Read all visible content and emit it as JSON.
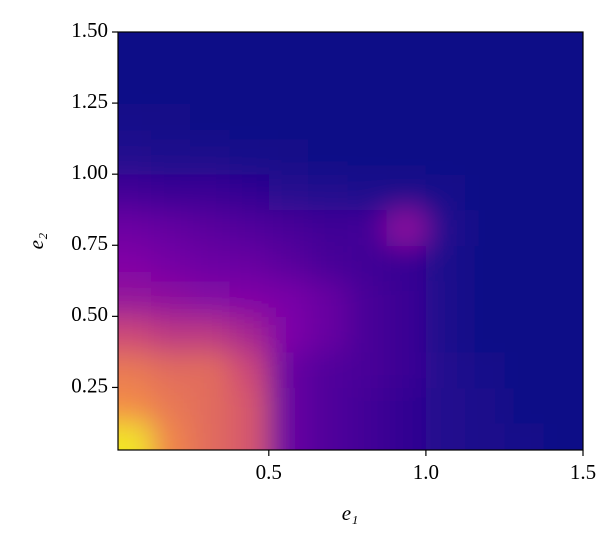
{
  "chart_data": {
    "type": "heatmap",
    "colormap": "plasma",
    "zlim": [
      0,
      1
    ],
    "xlabel": "e₁",
    "ylabel": "e₂",
    "xlim": [
      0.02,
      1.5
    ],
    "ylim": [
      0.03,
      1.5
    ],
    "xticks": [
      0.5,
      {
        "value": 1,
        "label": "1.0"
      },
      {
        "value": 1.5,
        "label": "1.5"
      }
    ],
    "yticks": [
      0.25,
      {
        "value": 0.5,
        "label": "0.50"
      },
      0.75,
      {
        "value": 1,
        "label": "1.00"
      },
      1.25,
      {
        "value": 1.5,
        "label": "1.50"
      }
    ],
    "x": [
      0.0625,
      0.1875,
      0.3125,
      0.4375,
      0.5625,
      0.6875,
      0.8125,
      0.9375,
      1.0625,
      1.1875,
      1.3125,
      1.4375
    ],
    "y": [
      0.0625,
      0.1875,
      0.3125,
      0.4375,
      0.5625,
      0.6875,
      0.8125,
      0.9375,
      1.0625,
      1.1875,
      1.3125,
      1.4375
    ],
    "z": [
      [
        0.95,
        0.7,
        0.62,
        0.55,
        0.2,
        0.15,
        0.12,
        0.08,
        0.05,
        0.03,
        0.02,
        0
      ],
      [
        0.72,
        0.66,
        0.62,
        0.55,
        0.2,
        0.15,
        0.12,
        0.08,
        0.05,
        0.03,
        0,
        0
      ],
      [
        0.66,
        0.62,
        0.62,
        0.5,
        0.2,
        0.15,
        0.13,
        0.1,
        0.05,
        0.02,
        0,
        0
      ],
      [
        0.5,
        0.45,
        0.45,
        0.38,
        0.25,
        0.2,
        0.13,
        0.1,
        0.04,
        0,
        0,
        0
      ],
      [
        0.32,
        0.3,
        0.27,
        0.26,
        0.24,
        0.2,
        0.13,
        0.1,
        0.04,
        0,
        0,
        0
      ],
      [
        0.26,
        0.23,
        0.21,
        0.2,
        0.17,
        0.13,
        0.11,
        0.09,
        0.04,
        0,
        0,
        0
      ],
      [
        0.21,
        0.19,
        0.17,
        0.15,
        0.13,
        0.11,
        0.12,
        0.3,
        0.05,
        0,
        0,
        0
      ],
      [
        0.12,
        0.1,
        0.1,
        0.08,
        0.06,
        0.05,
        0.04,
        0.03,
        0.02,
        0,
        0,
        0
      ],
      [
        0.05,
        0.04,
        0.03,
        0.02,
        0.01,
        0,
        0,
        0,
        0,
        0,
        0,
        0
      ],
      [
        0.02,
        0.01,
        0,
        0,
        0,
        0,
        0,
        0,
        0,
        0,
        0,
        0
      ],
      [
        0,
        0,
        0,
        0,
        0,
        0,
        0,
        0,
        0,
        0,
        0,
        0
      ],
      [
        0,
        0,
        0,
        0,
        0,
        0,
        0,
        0,
        0,
        0,
        0,
        0
      ]
    ]
  }
}
